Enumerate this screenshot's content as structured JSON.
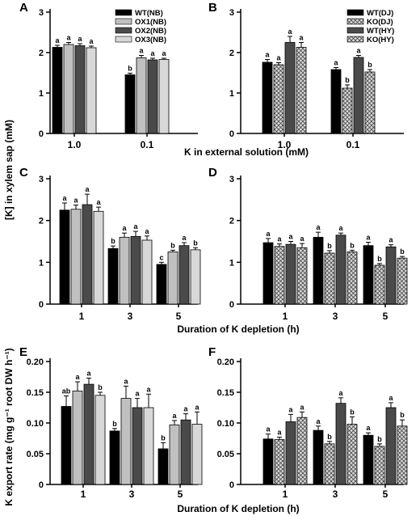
{
  "figure": {
    "ylabel_top": "[K] in xylem sap (mM)",
    "xlabel_top": "K in external solution (mM)",
    "xlabel_duration_c": "Duration of K depletion (h)",
    "xlabel_duration_e": "Duration of K depletion (h)",
    "ylabel_bottom": "K export rate (mg g⁻¹ root DW h⁻¹)"
  },
  "colors": {
    "black": "#000000",
    "light_gray": "#c0c0c0",
    "dark_gray": "#4a4a4a",
    "lighter_gray": "#d8d8d8",
    "hatch": "#8a8a8a"
  },
  "chart_data": [
    {
      "panel": "A",
      "type": "bar",
      "categories": [
        "1.0",
        "0.1"
      ],
      "ylim": [
        0,
        3
      ],
      "yticks": [
        "0",
        "1",
        "2",
        "3"
      ],
      "legend_position": "top-right",
      "series": [
        {
          "name": "WT(NB)",
          "values": [
            2.13,
            1.45
          ],
          "errors": [
            0.05,
            0.04
          ],
          "labels": [
            "a",
            "b"
          ],
          "fill": "black"
        },
        {
          "name": "OX1(NB)",
          "values": [
            2.2,
            1.87
          ],
          "errors": [
            0.05,
            0.06
          ],
          "labels": [
            "a",
            "a"
          ],
          "fill": "light_gray"
        },
        {
          "name": "OX2(NB)",
          "values": [
            2.17,
            1.82
          ],
          "errors": [
            0.05,
            0.04
          ],
          "labels": [
            "a",
            "a"
          ],
          "fill": "dark_gray"
        },
        {
          "name": "OX3(NB)",
          "values": [
            2.12,
            1.83
          ],
          "errors": [
            0.04,
            0.03
          ],
          "labels": [
            "a",
            "a"
          ],
          "fill": "lighter_gray"
        }
      ]
    },
    {
      "panel": "B",
      "type": "bar",
      "categories": [
        "1.0",
        "0.1"
      ],
      "ylim": [
        0,
        3
      ],
      "yticks": [
        "0",
        "1",
        "2",
        "3"
      ],
      "legend_position": "top-right",
      "series": [
        {
          "name": "WT(DJ)",
          "values": [
            1.76,
            1.58
          ],
          "errors": [
            0.07,
            0.05
          ],
          "labels": [
            "a",
            "a"
          ],
          "fill": "black"
        },
        {
          "name": "KO(DJ)",
          "values": [
            1.7,
            1.12
          ],
          "errors": [
            0.05,
            0.08
          ],
          "labels": [
            "a",
            "b"
          ],
          "fill": "hatch"
        },
        {
          "name": "WT(HY)",
          "values": [
            2.25,
            1.88
          ],
          "errors": [
            0.15,
            0.05
          ],
          "labels": [
            "a",
            "a"
          ],
          "fill": "dark_gray"
        },
        {
          "name": "KO(HY)",
          "values": [
            2.13,
            1.52
          ],
          "errors": [
            0.12,
            0.06
          ],
          "labels": [
            "a",
            "b"
          ],
          "fill": "hatch"
        }
      ]
    },
    {
      "panel": "C",
      "type": "bar",
      "categories": [
        "1",
        "3",
        "5"
      ],
      "ylim": [
        0,
        3
      ],
      "yticks": [
        "0",
        "1",
        "2",
        "3"
      ],
      "series": [
        {
          "values": [
            2.25,
            1.33,
            0.95
          ],
          "errors": [
            0.17,
            0.06,
            0.05
          ],
          "labels": [
            "a",
            "b",
            "c"
          ],
          "fill": "black"
        },
        {
          "values": [
            2.27,
            1.6,
            1.25
          ],
          "errors": [
            0.1,
            0.1,
            0.04
          ],
          "labels": [
            "a",
            "a",
            "b"
          ],
          "fill": "light_gray"
        },
        {
          "values": [
            2.38,
            1.62,
            1.4
          ],
          "errors": [
            0.25,
            0.12,
            0.07
          ],
          "labels": [
            "a",
            "a",
            "a"
          ],
          "fill": "dark_gray"
        },
        {
          "values": [
            2.22,
            1.53,
            1.3
          ],
          "errors": [
            0.1,
            0.1,
            0.05
          ],
          "labels": [
            "a",
            "a",
            "b"
          ],
          "fill": "lighter_gray"
        }
      ]
    },
    {
      "panel": "D",
      "type": "bar",
      "categories": [
        "1",
        "3",
        "5"
      ],
      "ylim": [
        0,
        3
      ],
      "yticks": [
        "0",
        "1",
        "2",
        "3"
      ],
      "series": [
        {
          "values": [
            1.47,
            1.6,
            1.4
          ],
          "errors": [
            0.1,
            0.12,
            0.08
          ],
          "labels": [
            "a",
            "a",
            "a"
          ],
          "fill": "black"
        },
        {
          "values": [
            1.38,
            1.22,
            0.93
          ],
          "errors": [
            0.06,
            0.06,
            0.04
          ],
          "labels": [
            "a",
            "b",
            "b"
          ],
          "fill": "hatch"
        },
        {
          "values": [
            1.43,
            1.65,
            1.37
          ],
          "errors": [
            0.07,
            0.05,
            0.05
          ],
          "labels": [
            "a",
            "a",
            "a"
          ],
          "fill": "dark_gray"
        },
        {
          "values": [
            1.35,
            1.25,
            1.1
          ],
          "errors": [
            0.1,
            0.04,
            0.04
          ],
          "labels": [
            "a",
            "b",
            "b"
          ],
          "fill": "hatch"
        }
      ]
    },
    {
      "panel": "E",
      "type": "bar",
      "categories": [
        "1",
        "3",
        "5"
      ],
      "ylim": [
        0,
        0.2
      ],
      "yticks": [
        "0",
        "0.05",
        "0.10",
        "0.15",
        "0.20"
      ],
      "series": [
        {
          "values": [
            0.127,
            0.087,
            0.058
          ],
          "errors": [
            0.017,
            0.004,
            0.01
          ],
          "labels": [
            "ab",
            "b",
            "b"
          ],
          "fill": "black"
        },
        {
          "values": [
            0.152,
            0.14,
            0.097
          ],
          "errors": [
            0.015,
            0.02,
            0.007
          ],
          "labels": [
            "a",
            "a",
            "a"
          ],
          "fill": "light_gray"
        },
        {
          "values": [
            0.163,
            0.125,
            0.105
          ],
          "errors": [
            0.01,
            0.015,
            0.01
          ],
          "labels": [
            "a",
            "a",
            "a"
          ],
          "fill": "dark_gray"
        },
        {
          "values": [
            0.145,
            0.125,
            0.098
          ],
          "errors": [
            0.005,
            0.022,
            0.02
          ],
          "labels": [
            "b",
            "a",
            "a"
          ],
          "fill": "lighter_gray"
        }
      ]
    },
    {
      "panel": "F",
      "type": "bar",
      "categories": [
        "1",
        "3",
        "5"
      ],
      "ylim": [
        0,
        0.2
      ],
      "yticks": [
        "0",
        "0.05",
        "0.10",
        "0.15",
        "0.20"
      ],
      "series": [
        {
          "values": [
            0.074,
            0.088,
            0.08
          ],
          "errors": [
            0.008,
            0.007,
            0.004
          ],
          "labels": [
            "a",
            "a",
            "a"
          ],
          "fill": "black"
        },
        {
          "values": [
            0.073,
            0.066,
            0.062
          ],
          "errors": [
            0.004,
            0.004,
            0.004
          ],
          "labels": [
            "a",
            "b",
            "b"
          ],
          "fill": "hatch"
        },
        {
          "values": [
            0.102,
            0.132,
            0.125
          ],
          "errors": [
            0.012,
            0.009,
            0.008
          ],
          "labels": [
            "a",
            "a",
            "a"
          ],
          "fill": "dark_gray"
        },
        {
          "values": [
            0.109,
            0.098,
            0.095
          ],
          "errors": [
            0.009,
            0.012,
            0.01
          ],
          "labels": [
            "a",
            "b",
            "b"
          ],
          "fill": "hatch"
        }
      ]
    }
  ]
}
